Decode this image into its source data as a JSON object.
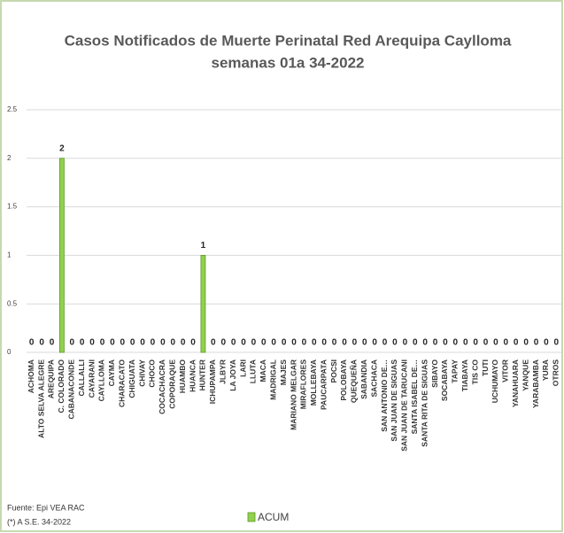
{
  "chart_data": {
    "type": "bar",
    "title": "Casos Notificados de Muerte Perinatal Red Arequipa Caylloma",
    "subtitle": "semanas 01a 34-2022",
    "categories": [
      "ACHOMA",
      "ALTO SELVA ALEGRE",
      "AREQUIPA",
      "C. COLORADO",
      "CABANACONDE",
      "CALLALLI",
      "CAYARANI",
      "CAYLLOMA",
      "CAYMA",
      "CHARACATO",
      "CHIGUATA",
      "CHIVAY",
      "CHOCO",
      "COCACHACRA",
      "COPORAQUE",
      "HUAMBO",
      "HUANCA",
      "HUNTER",
      "ICHUPAMPA",
      "JLBYR",
      "LA JOYA",
      "LARI",
      "LLUTA",
      "MACA",
      "MADRIGAL",
      "MAJES",
      "MARIANO MELGAR",
      "MIRAFLORES",
      "MOLLEBAYA",
      "PAUCARPATA",
      "POCSI",
      "POLOBAYA",
      "QUEQUEÑA",
      "SABANDIA",
      "SACHACA",
      "SAN ANTONIO DE…",
      "SAN JUAN DE SIGUAS",
      "SAN JUAN DE TARUCANI",
      "SANTA ISABEL DE…",
      "SANTA RITA DE SIGUAS",
      "SIBAYO",
      "SOCABAYA",
      "TAPAY",
      "TIABAYA",
      "TIS CO",
      "TUTI",
      "UCHUMAYO",
      "VITOR",
      "YANAHUARA",
      "YANQUE",
      "YARABAMBA",
      "YURA",
      "OTROS"
    ],
    "series": [
      {
        "name": "ACUM",
        "color": "#92d050",
        "values": [
          0,
          0,
          0,
          2,
          0,
          0,
          0,
          0,
          0,
          0,
          0,
          0,
          0,
          0,
          0,
          0,
          0,
          1,
          0,
          0,
          0,
          0,
          0,
          0,
          0,
          0,
          0,
          0,
          0,
          0,
          0,
          0,
          0,
          0,
          0,
          0,
          0,
          0,
          0,
          0,
          0,
          0,
          0,
          0,
          0,
          0,
          0,
          0,
          0,
          0,
          0,
          0,
          0
        ]
      }
    ],
    "ylim": [
      0,
      2.5
    ],
    "yticks": [
      0,
      0.5,
      1,
      1.5,
      2,
      2.5
    ],
    "grid": true,
    "notes": [
      "Fuente: Epi VEA RAC",
      "(*) A S.E. 34-2022"
    ]
  }
}
